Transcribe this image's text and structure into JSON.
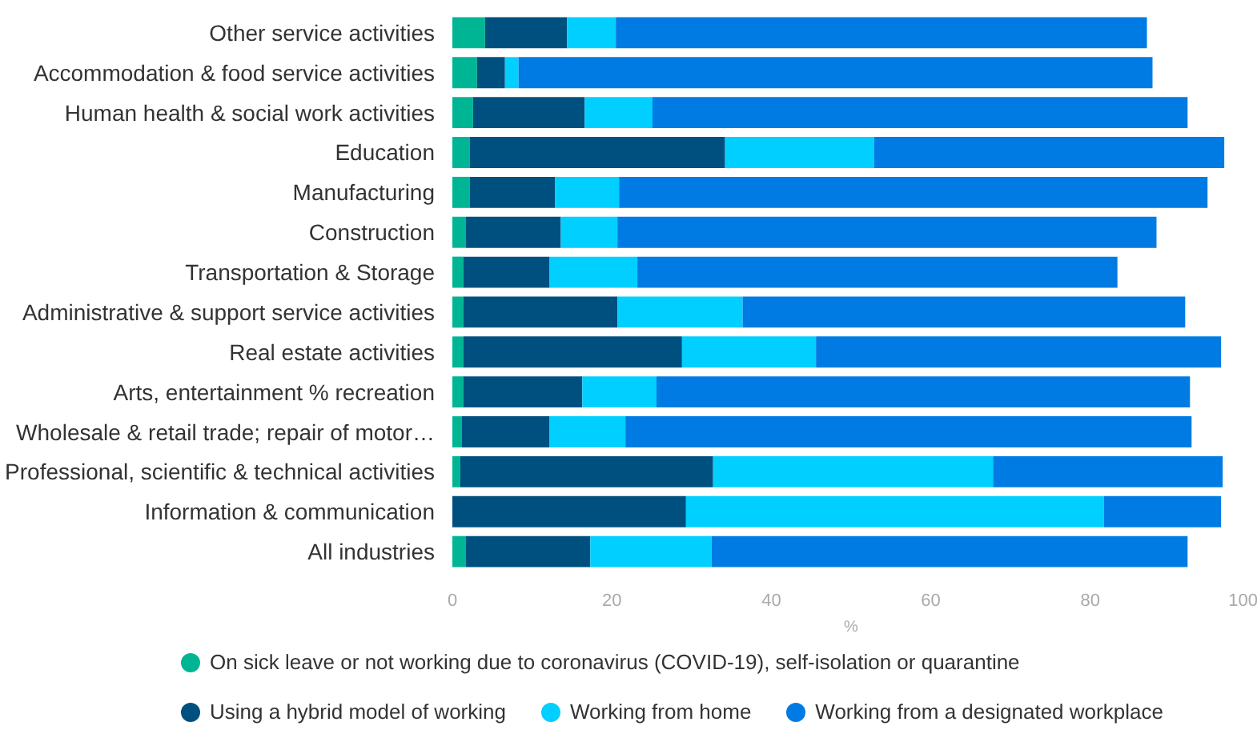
{
  "chart_data": {
    "type": "bar",
    "orientation": "horizontal",
    "stacked": true,
    "xlabel": "%",
    "categories": [
      "Other service activities",
      "Accommodation & food service activities",
      "Human health & social work activities",
      "Education",
      "Manufacturing",
      "Construction",
      "Transportation & Storage",
      "Administrative & support service activities",
      "Real estate activities",
      "Arts, entertainment % recreation",
      "Wholesale & retail trade; repair of motor…",
      "Professional, scientific & technical activities",
      "Information & communication",
      "All industries"
    ],
    "series": [
      {
        "name": "On sick leave or not working due to coronavirus (COVID-19), self-isolation or quarantine",
        "color": "#00b594",
        "values": [
          4.1,
          3.1,
          2.6,
          2.2,
          2.2,
          1.7,
          1.4,
          1.4,
          1.4,
          1.4,
          1.2,
          1.0,
          0,
          1.7
        ]
      },
      {
        "name": "Using a hybrid model of working",
        "color": "#00507f",
        "values": [
          10.3,
          3.5,
          14.0,
          32.0,
          10.7,
          11.9,
          10.8,
          19.3,
          27.4,
          14.9,
          11.0,
          31.7,
          29.3,
          15.6
        ]
      },
      {
        "name": "Working from home",
        "color": "#00cfff",
        "values": [
          6.1,
          1.7,
          8.5,
          18.7,
          8.0,
          7.1,
          11.0,
          15.7,
          16.8,
          9.3,
          9.5,
          35.1,
          52.4,
          15.2
        ]
      },
      {
        "name": "Working from a designated workplace",
        "color": "#007be3",
        "values": [
          66.6,
          79.5,
          67.1,
          43.9,
          73.8,
          67.6,
          60.2,
          55.5,
          50.8,
          66.9,
          71.0,
          28.8,
          14.7,
          59.7
        ]
      }
    ],
    "xlim": [
      0,
      100
    ],
    "xticks": [
      0,
      20,
      40,
      60,
      80,
      100
    ],
    "grid": false,
    "legend": "bottom"
  }
}
